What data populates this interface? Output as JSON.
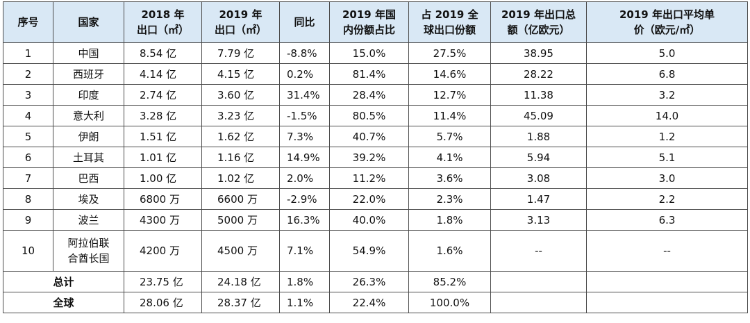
{
  "headers": [
    "序号",
    "国家",
    "2018 年\n出口（㎡）",
    "2019 年\n出口（㎡）",
    "同比",
    "2019 年国\n内份额占比",
    "占 2019 全\n球出口份额",
    "2019 年出口总\n额（亿欧元）",
    "2019 年出口平均单\n价（欧元/㎡）"
  ],
  "rows": [
    {
      "no": "1",
      "country": "中国",
      "exp2018": "8.54 亿",
      "exp2019": "7.79 亿",
      "yoy": "-8.8%",
      "domestic_share": "15.0%",
      "global_share": "27.5%",
      "total_value": "38.95",
      "unit_price": "5.0"
    },
    {
      "no": "2",
      "country": "西班牙",
      "exp2018": "4.14 亿",
      "exp2019": "4.15 亿",
      "yoy": "0.2%",
      "domestic_share": "81.4%",
      "global_share": "14.6%",
      "total_value": "28.22",
      "unit_price": "6.8"
    },
    {
      "no": "3",
      "country": "印度",
      "exp2018": "2.74 亿",
      "exp2019": "3.60 亿",
      "yoy": "31.4%",
      "domestic_share": "28.4%",
      "global_share": "12.7%",
      "total_value": "11.38",
      "unit_price": "3.2"
    },
    {
      "no": "4",
      "country": "意大利",
      "exp2018": "3.28 亿",
      "exp2019": "3.23 亿",
      "yoy": "-1.5%",
      "domestic_share": "80.5%",
      "global_share": "11.4%",
      "total_value": "45.09",
      "unit_price": "14.0"
    },
    {
      "no": "5",
      "country": "伊朗",
      "exp2018": "1.51 亿",
      "exp2019": "1.62 亿",
      "yoy": "7.3%",
      "domestic_share": "40.7%",
      "global_share": "5.7%",
      "total_value": "1.88",
      "unit_price": "1.2"
    },
    {
      "no": "6",
      "country": "土耳其",
      "exp2018": "1.01 亿",
      "exp2019": "1.16 亿",
      "yoy": "14.9%",
      "domestic_share": "39.2%",
      "global_share": "4.1%",
      "total_value": "5.94",
      "unit_price": "5.1"
    },
    {
      "no": "7",
      "country": "巴西",
      "exp2018": "1.00 亿",
      "exp2019": "1.02 亿",
      "yoy": "2.0%",
      "domestic_share": "11.2%",
      "global_share": "3.6%",
      "total_value": "3.08",
      "unit_price": "3.0"
    },
    {
      "no": "8",
      "country": "埃及",
      "exp2018": "6800 万",
      "exp2019": "6600 万",
      "yoy": "-2.9%",
      "domestic_share": "22.0%",
      "global_share": "2.3%",
      "total_value": "1.47",
      "unit_price": "2.2"
    },
    {
      "no": "9",
      "country": "波兰",
      "exp2018": "4300 万",
      "exp2019": "5000 万",
      "yoy": "16.3%",
      "domestic_share": "40.0%",
      "global_share": "1.8%",
      "total_value": "3.13",
      "unit_price": "6.3"
    },
    {
      "no": "10",
      "country": "阿拉伯联\n合酋长国",
      "exp2018": "4200 万",
      "exp2019": "4500 万",
      "yoy": "7.1%",
      "domestic_share": "54.9%",
      "global_share": "1.6%",
      "total_value": "--",
      "unit_price": "--"
    }
  ],
  "totals": [
    {
      "label": "总计",
      "exp2018": "23.75 亿",
      "exp2019": "24.18 亿",
      "yoy": "1.8%",
      "domestic_share": "26.3%",
      "global_share": "85.2%"
    },
    {
      "label": "全球",
      "exp2018": "28.06 亿",
      "exp2019": "28.37 亿",
      "yoy": "1.1%",
      "domestic_share": "22.4%",
      "global_share": "100.0%"
    }
  ]
}
